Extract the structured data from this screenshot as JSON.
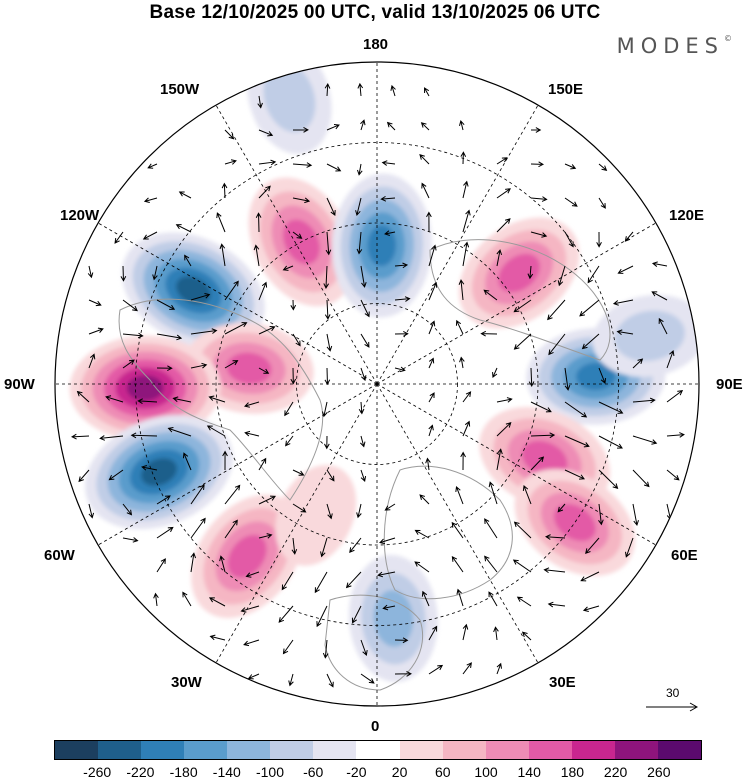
{
  "title": "Base 12/10/2025 00 UTC, valid 13/10/2025 06 UTC",
  "brand": "MODES",
  "brand_mark": "©",
  "longitude_labels": {
    "top": "180",
    "bottom": "0",
    "left": "90W",
    "right": "90E",
    "upper_left_1": "150W",
    "upper_left_2": "120W",
    "upper_right_1": "150E",
    "upper_right_2": "120E",
    "lower_left_1": "60W",
    "lower_left_2": "30W",
    "lower_right_1": "60E",
    "lower_right_2": "30E"
  },
  "reference_vector": {
    "label": "30"
  },
  "colorbar": {
    "labels": [
      "-260",
      "-220",
      "-180",
      "-140",
      "-100",
      "-60",
      "-20",
      "20",
      "60",
      "100",
      "140",
      "180",
      "220",
      "260"
    ],
    "colors": [
      "#1c3f5f",
      "#1f5f8b",
      "#2f7fb7",
      "#5a9ccc",
      "#8db5dc",
      "#c0cde6",
      "#e4e4f1",
      "#ffffff",
      "#f9d9dc",
      "#f5b6c3",
      "#ee8cb5",
      "#e35aa6",
      "#c8268f",
      "#8e147c",
      "#5b0a6e"
    ]
  },
  "map": {
    "projection": "north polar stereographic",
    "anomalies": [
      {
        "name": "aleutian-high",
        "lon": -152,
        "r": 0.5,
        "value": 170
      },
      {
        "name": "gulf-of-alaska-low",
        "lon": 178,
        "r": 0.43,
        "value": -200
      },
      {
        "name": "north-pacific-low-2",
        "lon": -163,
        "r": 0.93,
        "value": -80
      },
      {
        "name": "canada-low",
        "lon": -117,
        "r": 0.64,
        "value": -230
      },
      {
        "name": "hudson-high",
        "lon": -97,
        "r": 0.4,
        "value": 140
      },
      {
        "name": "north-america-high",
        "lon": -89,
        "r": 0.72,
        "value": 230
      },
      {
        "name": "atlantic-low",
        "lon": -68,
        "r": 0.73,
        "value": -240
      },
      {
        "name": "north-atlantic-high",
        "lon": -37,
        "r": 0.67,
        "value": 170
      },
      {
        "name": "east-siberia-high",
        "lon": 128,
        "r": 0.56,
        "value": 160
      },
      {
        "name": "siberian-low",
        "lon": 92,
        "r": 0.68,
        "value": -180
      },
      {
        "name": "west-asia-high",
        "lon": 66,
        "r": 0.57,
        "value": 170
      },
      {
        "name": "west-asia-high-2",
        "lon": 55,
        "r": 0.75,
        "value": 150
      },
      {
        "name": "europe-low",
        "lon": 4,
        "r": 0.73,
        "value": -130
      },
      {
        "name": "siberian-weak-low",
        "lon": 100,
        "r": 0.86,
        "value": -80
      },
      {
        "name": "scandinavia-high",
        "lon": -25,
        "r": 0.45,
        "value": 40
      }
    ]
  }
}
